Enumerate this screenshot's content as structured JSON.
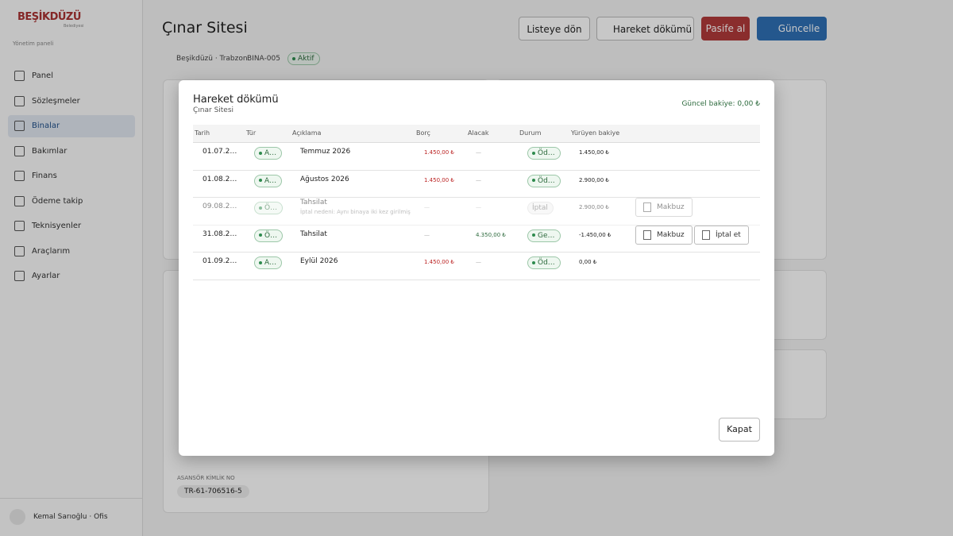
{
  "sidebar": {
    "logo": "BEŞİKDÜZÜ",
    "logo_sub": "Belediyesi",
    "caption": "Yönetim paneli",
    "nav": [
      "Panel",
      "Sözleşmeler",
      "Binalar",
      "Bakımlar",
      "Finans",
      "Ödeme takip",
      "Teknisyenler",
      "Araçlarım",
      "Ayarlar"
    ],
    "user": "Kemal Sarıoğlu · Ofis"
  },
  "header": {
    "title": "Çınar Sitesi",
    "buttons": [
      "Listeye dön",
      "Hareket dökümü",
      "Pasife al",
      "Güncelle"
    ],
    "location": "Beşikdüzü · Trabzon",
    "code": "BINA-005",
    "status": "Aktif"
  },
  "background": {
    "field_label": "ASANSÖR KİMLİK NO",
    "field_value": "TR-61-706516-5"
  },
  "modal": {
    "title": "Hareket dökümü",
    "subtitle": "Çınar Sitesi",
    "balance": "Güncel bakiye: 0,00 ₺",
    "columns": [
      "Tarih",
      "Tür",
      "Açıklama",
      "Borç",
      "Alacak",
      "Durum",
      "Yürüyen bakiye"
    ],
    "rows": [
      {
        "date": "01.07.2…",
        "type": "A…",
        "desc": "Temmuz 2026",
        "debit": "1.450,00 ₺",
        "credit": "—",
        "status": "Öd…",
        "balance": "1.450,00 ₺"
      },
      {
        "date": "01.08.2…",
        "type": "A…",
        "desc": "Ağustos 2026",
        "debit": "1.450,00 ₺",
        "credit": "—",
        "status": "Öd…",
        "balance": "2.900,00 ₺"
      },
      {
        "date": "09.08.2…",
        "type": "Ö…",
        "desc": "Tahsilat",
        "note": "İptal nedeni: Aynı binaya iki kez girilmiş",
        "debit": "—",
        "credit": "—",
        "status": "İptal",
        "balance": "2.900,00 ₺",
        "actions": [
          "Makbuz"
        ]
      },
      {
        "date": "31.08.2…",
        "type": "Ö…",
        "desc": "Tahsilat",
        "debit": "—",
        "credit": "4.350,00 ₺",
        "status": "Ge…",
        "balance": "-1.450,00 ₺",
        "actions": [
          "Makbuz",
          "İptal et"
        ]
      },
      {
        "date": "01.09.2…",
        "type": "A…",
        "desc": "Eylül 2026",
        "debit": "1.450,00 ₺",
        "credit": "—",
        "status": "Öd…",
        "balance": "0,00 ₺"
      }
    ],
    "close": "Kapat"
  }
}
